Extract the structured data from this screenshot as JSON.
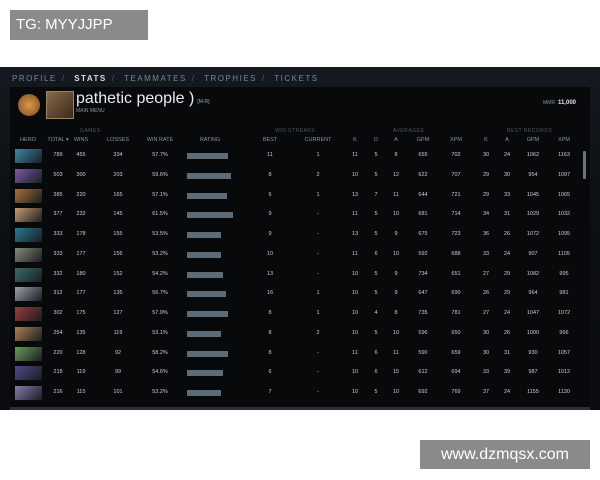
{
  "watermarks": {
    "top_left": "TG: MYYJJPP",
    "bottom_right": "www.dzmqsx.com"
  },
  "nav": {
    "items": [
      "PROFILE",
      "STATS",
      "TEAMMATES",
      "TROPHIES",
      "TICKETS"
    ],
    "active": "STATS"
  },
  "profile": {
    "name": "pathetic people )",
    "tag": "[M-R]",
    "subtitle": "MAIN MENU",
    "mmr_label": "MMR",
    "mmr_value": "11,000"
  },
  "groups": {
    "games": "GAMES",
    "win_streaks": "WIN STREAKS",
    "averages": "AVERAGES",
    "best_records": "BEST RECORDS"
  },
  "columns": [
    "HERO",
    "TOTAL",
    "WINS",
    "LOSSES",
    "WIN RATE",
    "RATING",
    "BEST",
    "CURRENT",
    "K",
    "D",
    "A",
    "GPM",
    "XPM",
    "K",
    "A",
    "GPM",
    "XPM"
  ],
  "sort_indicator": "TOTAL ▾",
  "rows": [
    {
      "hero_color": "#3a8aa8",
      "total": "789",
      "wins": "455",
      "losses": "334",
      "winrate": "57.7%",
      "rating": 0.82,
      "best": "11",
      "current": "1",
      "k": "11",
      "d": "5",
      "a": "8",
      "gpm": "655",
      "xpm": "702",
      "bk": "30",
      "ba": "24",
      "bgpm": "1062",
      "bxpm": "1163"
    },
    {
      "hero_color": "#7a5aa8",
      "total": "503",
      "wins": "300",
      "losses": "203",
      "winrate": "59.6%",
      "rating": 0.88,
      "best": "8",
      "current": "2",
      "k": "10",
      "d": "5",
      "a": "12",
      "gpm": "622",
      "xpm": "707",
      "bk": "29",
      "ba": "30",
      "bgpm": "954",
      "bxpm": "1097"
    },
    {
      "hero_color": "#a8703a",
      "total": "385",
      "wins": "220",
      "losses": "165",
      "winrate": "57.1%",
      "rating": 0.8,
      "best": "6",
      "current": "1",
      "k": "13",
      "d": "7",
      "a": "11",
      "gpm": "644",
      "xpm": "721",
      "bk": "29",
      "ba": "33",
      "bgpm": "1045",
      "bxpm": "1065"
    },
    {
      "hero_color": "#c89a70",
      "total": "377",
      "wins": "232",
      "losses": "145",
      "winrate": "61.5%",
      "rating": 0.92,
      "best": "9",
      "current": "-",
      "k": "11",
      "d": "5",
      "a": "10",
      "gpm": "681",
      "xpm": "714",
      "bk": "34",
      "ba": "31",
      "bgpm": "1029",
      "bxpm": "1032"
    },
    {
      "hero_color": "#2a7a90",
      "total": "333",
      "wins": "178",
      "losses": "155",
      "winrate": "53.5%",
      "rating": 0.68,
      "best": "9",
      "current": "-",
      "k": "13",
      "d": "5",
      "a": "9",
      "gpm": "675",
      "xpm": "723",
      "bk": "36",
      "ba": "26",
      "bgpm": "1072",
      "bxpm": "1095"
    },
    {
      "hero_color": "#8a8a7a",
      "total": "333",
      "wins": "177",
      "losses": "156",
      "winrate": "53.2%",
      "rating": 0.68,
      "best": "10",
      "current": "-",
      "k": "11",
      "d": "6",
      "a": "10",
      "gpm": "592",
      "xpm": "688",
      "bk": "33",
      "ba": "24",
      "bgpm": "907",
      "bxpm": "1105"
    },
    {
      "hero_color": "#3a6a6a",
      "total": "332",
      "wins": "180",
      "losses": "152",
      "winrate": "54.2%",
      "rating": 0.72,
      "best": "13",
      "current": "-",
      "k": "10",
      "d": "5",
      "a": "9",
      "gpm": "734",
      "xpm": "651",
      "bk": "27",
      "ba": "29",
      "bgpm": "1082",
      "bxpm": "995"
    },
    {
      "hero_color": "#9aa0a8",
      "total": "312",
      "wins": "177",
      "losses": "135",
      "winrate": "56.7%",
      "rating": 0.78,
      "best": "16",
      "current": "1",
      "k": "10",
      "d": "5",
      "a": "9",
      "gpm": "647",
      "xpm": "690",
      "bk": "26",
      "ba": "29",
      "bgpm": "964",
      "bxpm": "981"
    },
    {
      "hero_color": "#a03a3a",
      "total": "302",
      "wins": "175",
      "losses": "127",
      "winrate": "57.9%",
      "rating": 0.82,
      "best": "8",
      "current": "1",
      "k": "10",
      "d": "4",
      "a": "8",
      "gpm": "735",
      "xpm": "781",
      "bk": "27",
      "ba": "24",
      "bgpm": "1047",
      "bxpm": "1072"
    },
    {
      "hero_color": "#b08050",
      "total": "254",
      "wins": "135",
      "losses": "119",
      "winrate": "53.1%",
      "rating": 0.68,
      "best": "8",
      "current": "2",
      "k": "10",
      "d": "5",
      "a": "10",
      "gpm": "596",
      "xpm": "650",
      "bk": "30",
      "ba": "26",
      "bgpm": "1000",
      "bxpm": "966"
    },
    {
      "hero_color": "#6a9a5a",
      "total": "220",
      "wins": "128",
      "losses": "92",
      "winrate": "58.2%",
      "rating": 0.82,
      "best": "8",
      "current": "-",
      "k": "11",
      "d": "6",
      "a": "11",
      "gpm": "590",
      "xpm": "659",
      "bk": "30",
      "ba": "31",
      "bgpm": "930",
      "bxpm": "1057"
    },
    {
      "hero_color": "#4a4a8a",
      "total": "218",
      "wins": "119",
      "losses": "99",
      "winrate": "54.6%",
      "rating": 0.72,
      "best": "6",
      "current": "-",
      "k": "10",
      "d": "6",
      "a": "15",
      "gpm": "612",
      "xpm": "694",
      "bk": "33",
      "ba": "39",
      "bgpm": "987",
      "bxpm": "1012"
    },
    {
      "hero_color": "#8a7ab0",
      "total": "216",
      "wins": "115",
      "losses": "101",
      "winrate": "53.2%",
      "rating": 0.68,
      "best": "7",
      "current": "-",
      "k": "10",
      "d": "5",
      "a": "10",
      "gpm": "692",
      "xpm": "769",
      "bk": "37",
      "ba": "24",
      "bgpm": "1155",
      "bxpm": "1130"
    }
  ]
}
